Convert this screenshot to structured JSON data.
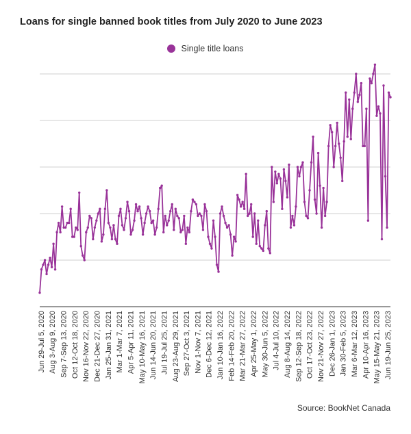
{
  "chart_data": {
    "type": "line",
    "title": "Loans for single banned book titles from July 2020 to June 2023",
    "xlabel": "",
    "ylabel": "",
    "ylim": [
      0,
      5
    ],
    "grid": true,
    "legend_position": "top-center",
    "series": [
      {
        "name": "Single title loans",
        "color": "#993399",
        "values": [
          0.3,
          0.8,
          0.9,
          1.0,
          0.7,
          0.9,
          1.05,
          0.85,
          1.35,
          0.8,
          1.6,
          1.8,
          1.6,
          2.15,
          1.7,
          1.7,
          1.8,
          1.8,
          2.1,
          1.5,
          1.5,
          1.7,
          1.65,
          2.45,
          1.3,
          1.1,
          1.0,
          1.6,
          1.7,
          1.95,
          1.9,
          1.45,
          1.7,
          1.85,
          2.0,
          2.1,
          1.4,
          1.55,
          2.1,
          2.5,
          1.8,
          1.7,
          1.45,
          1.75,
          1.45,
          1.35,
          1.95,
          2.1,
          1.75,
          1.65,
          1.9,
          2.25,
          2.05,
          1.55,
          1.65,
          1.85,
          2.2,
          2.05,
          2.15,
          1.9,
          1.55,
          1.8,
          2.0,
          2.15,
          2.05,
          1.8,
          1.85,
          1.55,
          1.7,
          2.1,
          2.55,
          2.6,
          1.6,
          1.95,
          1.75,
          1.85,
          2.05,
          2.2,
          1.65,
          2.1,
          1.95,
          1.9,
          1.6,
          1.65,
          1.95,
          1.35,
          1.7,
          1.6,
          2.05,
          2.3,
          2.25,
          2.2,
          1.95,
          2.0,
          1.95,
          1.65,
          2.2,
          2.05,
          1.5,
          1.35,
          1.25,
          1.85,
          1.5,
          0.9,
          0.75,
          2.0,
          2.15,
          1.95,
          1.8,
          1.7,
          1.75,
          1.55,
          1.1,
          1.5,
          1.4,
          2.4,
          2.3,
          2.15,
          2.25,
          2.1,
          2.85,
          1.95,
          2.0,
          2.2,
          1.5,
          2.0,
          1.35,
          1.85,
          1.3,
          1.25,
          1.2,
          1.75,
          2.05,
          1.25,
          1.15,
          3.0,
          2.25,
          2.9,
          2.65,
          2.85,
          2.75,
          2.1,
          2.95,
          2.7,
          2.35,
          3.05,
          1.7,
          1.95,
          1.75,
          2.15,
          3.0,
          2.8,
          3.0,
          3.1,
          2.25,
          1.95,
          1.9,
          2.5,
          3.1,
          3.65,
          2.3,
          2.0,
          3.3,
          2.6,
          1.7,
          2.55,
          1.95,
          2.25,
          3.45,
          3.9,
          3.75,
          3.0,
          3.45,
          3.95,
          3.5,
          3.2,
          2.7,
          3.55,
          4.6,
          3.65,
          4.45,
          3.6,
          4.25,
          4.6,
          5.0,
          4.4,
          4.55,
          4.8,
          3.45,
          3.45,
          4.25,
          1.85,
          4.9,
          4.8,
          5.0,
          5.2,
          4.1,
          4.3,
          4.15,
          1.45,
          4.75,
          2.8,
          1.7,
          4.6,
          4.5
        ]
      }
    ],
    "x_tick_labels": [
      "Jun 29-Jul 5, 2020",
      "Aug 3-Aug 9, 2020",
      "Sep 7-Sep 13, 2020",
      "Oct 12-Oct 18, 2020",
      "Nov 16-Nov 22, 2020",
      "Dec 21-Dec 27, 2020",
      "Jan 25-Jan 31, 2021",
      "Mar 1-Mar 7, 2021",
      "Apr 5-Apr 11, 2021",
      "May 10-May 16, 2021",
      "Jun 14-Jun 20, 2021",
      "Jul 19-Jul 25, 2021",
      "Aug 23-Aug 29, 2021",
      "Sep 27-Oct 3, 2021",
      "Nov 1-Nov 7, 2021",
      "Dec 6-Dec 12, 2021",
      "Jan 10-Jan 16, 2022",
      "Feb 14-Feb 20, 2022",
      "Mar 21-Mar 27, 2022",
      "Apr 25-May 1, 2022",
      "May 30-Jun 5, 2022",
      "Jul 4-Jul 10, 2022",
      "Aug 8-Aug 14, 2022",
      "Sep 12-Sep 18, 2022",
      "Oct 17-Oct 23, 2022",
      "Nov 21-Nov 27, 2022",
      "Dec 26-Jan 1, 2023",
      "Jan 30-Feb 5, 2023",
      "Mar 6-Mar 12, 2023",
      "Apr 10-Apr 16, 2023",
      "May 15-May 21, 2023",
      "Jun 19-Jun 25, 2023"
    ]
  },
  "legend": {
    "label": "Single title loans",
    "color": "#993399"
  },
  "source": "Source: BookNet Canada"
}
